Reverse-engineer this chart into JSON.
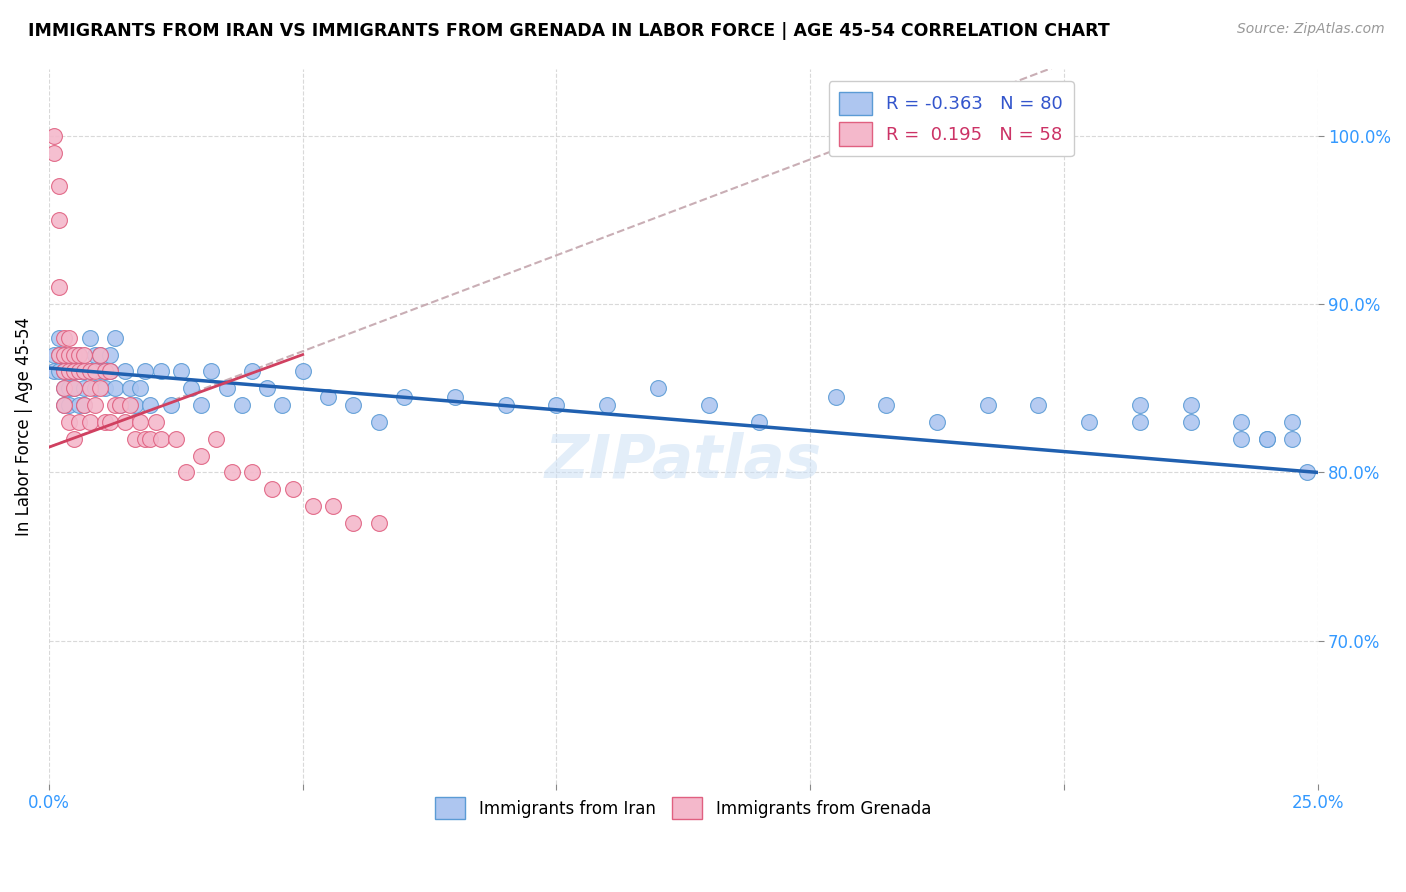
{
  "title": "IMMIGRANTS FROM IRAN VS IMMIGRANTS FROM GRENADA IN LABOR FORCE | AGE 45-54 CORRELATION CHART",
  "source": "Source: ZipAtlas.com",
  "ylabel": "In Labor Force | Age 45-54",
  "ylabel_ticks": [
    "70.0%",
    "80.0%",
    "90.0%",
    "100.0%"
  ],
  "ylabel_tick_values": [
    0.7,
    0.8,
    0.9,
    1.0
  ],
  "xlim": [
    0.0,
    0.25
  ],
  "ylim": [
    0.615,
    1.04
  ],
  "iran_color": "#aec6f0",
  "iran_edge_color": "#5b9bd5",
  "grenada_color": "#f4b8cb",
  "grenada_edge_color": "#e06080",
  "iran_R": -0.363,
  "iran_N": 80,
  "grenada_R": 0.195,
  "grenada_N": 58,
  "iran_line_color": "#2060b0",
  "grenada_line_color": "#d04060",
  "grenada_dashed_color": "#c0a0a8",
  "watermark": "ZIPatlas",
  "legend_label_iran": "R = -0.363   N = 80",
  "legend_label_grenada": "R =  0.195   N = 58",
  "bottom_label_iran": "Immigrants from Iran",
  "bottom_label_grenada": "Immigrants from Grenada",
  "iran_x": [
    0.001,
    0.001,
    0.002,
    0.002,
    0.002,
    0.003,
    0.003,
    0.003,
    0.003,
    0.004,
    0.004,
    0.004,
    0.005,
    0.005,
    0.005,
    0.006,
    0.006,
    0.006,
    0.007,
    0.007,
    0.007,
    0.008,
    0.008,
    0.009,
    0.009,
    0.01,
    0.01,
    0.011,
    0.011,
    0.012,
    0.012,
    0.013,
    0.013,
    0.014,
    0.015,
    0.016,
    0.017,
    0.018,
    0.019,
    0.02,
    0.022,
    0.024,
    0.026,
    0.028,
    0.03,
    0.032,
    0.035,
    0.038,
    0.04,
    0.043,
    0.046,
    0.05,
    0.055,
    0.06,
    0.065,
    0.07,
    0.08,
    0.09,
    0.1,
    0.11,
    0.12,
    0.13,
    0.14,
    0.155,
    0.165,
    0.175,
    0.185,
    0.195,
    0.205,
    0.215,
    0.215,
    0.225,
    0.225,
    0.235,
    0.235,
    0.24,
    0.24,
    0.245,
    0.245,
    0.248
  ],
  "iran_y": [
    0.87,
    0.86,
    0.88,
    0.87,
    0.86,
    0.87,
    0.86,
    0.85,
    0.84,
    0.86,
    0.85,
    0.84,
    0.87,
    0.86,
    0.85,
    0.87,
    0.86,
    0.84,
    0.86,
    0.85,
    0.84,
    0.88,
    0.86,
    0.87,
    0.85,
    0.87,
    0.86,
    0.86,
    0.85,
    0.87,
    0.86,
    0.88,
    0.85,
    0.84,
    0.86,
    0.85,
    0.84,
    0.85,
    0.86,
    0.84,
    0.86,
    0.84,
    0.86,
    0.85,
    0.84,
    0.86,
    0.85,
    0.84,
    0.86,
    0.85,
    0.84,
    0.86,
    0.845,
    0.84,
    0.83,
    0.845,
    0.845,
    0.84,
    0.84,
    0.84,
    0.85,
    0.84,
    0.83,
    0.845,
    0.84,
    0.83,
    0.84,
    0.84,
    0.83,
    0.84,
    0.83,
    0.84,
    0.83,
    0.83,
    0.82,
    0.82,
    0.82,
    0.83,
    0.82,
    0.8
  ],
  "grenada_x": [
    0.001,
    0.001,
    0.002,
    0.002,
    0.002,
    0.002,
    0.003,
    0.003,
    0.003,
    0.003,
    0.003,
    0.004,
    0.004,
    0.004,
    0.004,
    0.005,
    0.005,
    0.005,
    0.005,
    0.006,
    0.006,
    0.006,
    0.007,
    0.007,
    0.007,
    0.008,
    0.008,
    0.008,
    0.009,
    0.009,
    0.01,
    0.01,
    0.011,
    0.011,
    0.012,
    0.012,
    0.013,
    0.014,
    0.015,
    0.016,
    0.017,
    0.018,
    0.019,
    0.02,
    0.021,
    0.022,
    0.025,
    0.027,
    0.03,
    0.033,
    0.036,
    0.04,
    0.044,
    0.048,
    0.052,
    0.056,
    0.06,
    0.065
  ],
  "grenada_y": [
    1.0,
    0.99,
    0.97,
    0.95,
    0.91,
    0.87,
    0.88,
    0.87,
    0.86,
    0.85,
    0.84,
    0.88,
    0.87,
    0.86,
    0.83,
    0.87,
    0.86,
    0.85,
    0.82,
    0.87,
    0.86,
    0.83,
    0.87,
    0.86,
    0.84,
    0.86,
    0.85,
    0.83,
    0.86,
    0.84,
    0.87,
    0.85,
    0.86,
    0.83,
    0.86,
    0.83,
    0.84,
    0.84,
    0.83,
    0.84,
    0.82,
    0.83,
    0.82,
    0.82,
    0.83,
    0.82,
    0.82,
    0.8,
    0.81,
    0.82,
    0.8,
    0.8,
    0.79,
    0.79,
    0.78,
    0.78,
    0.77,
    0.77
  ]
}
